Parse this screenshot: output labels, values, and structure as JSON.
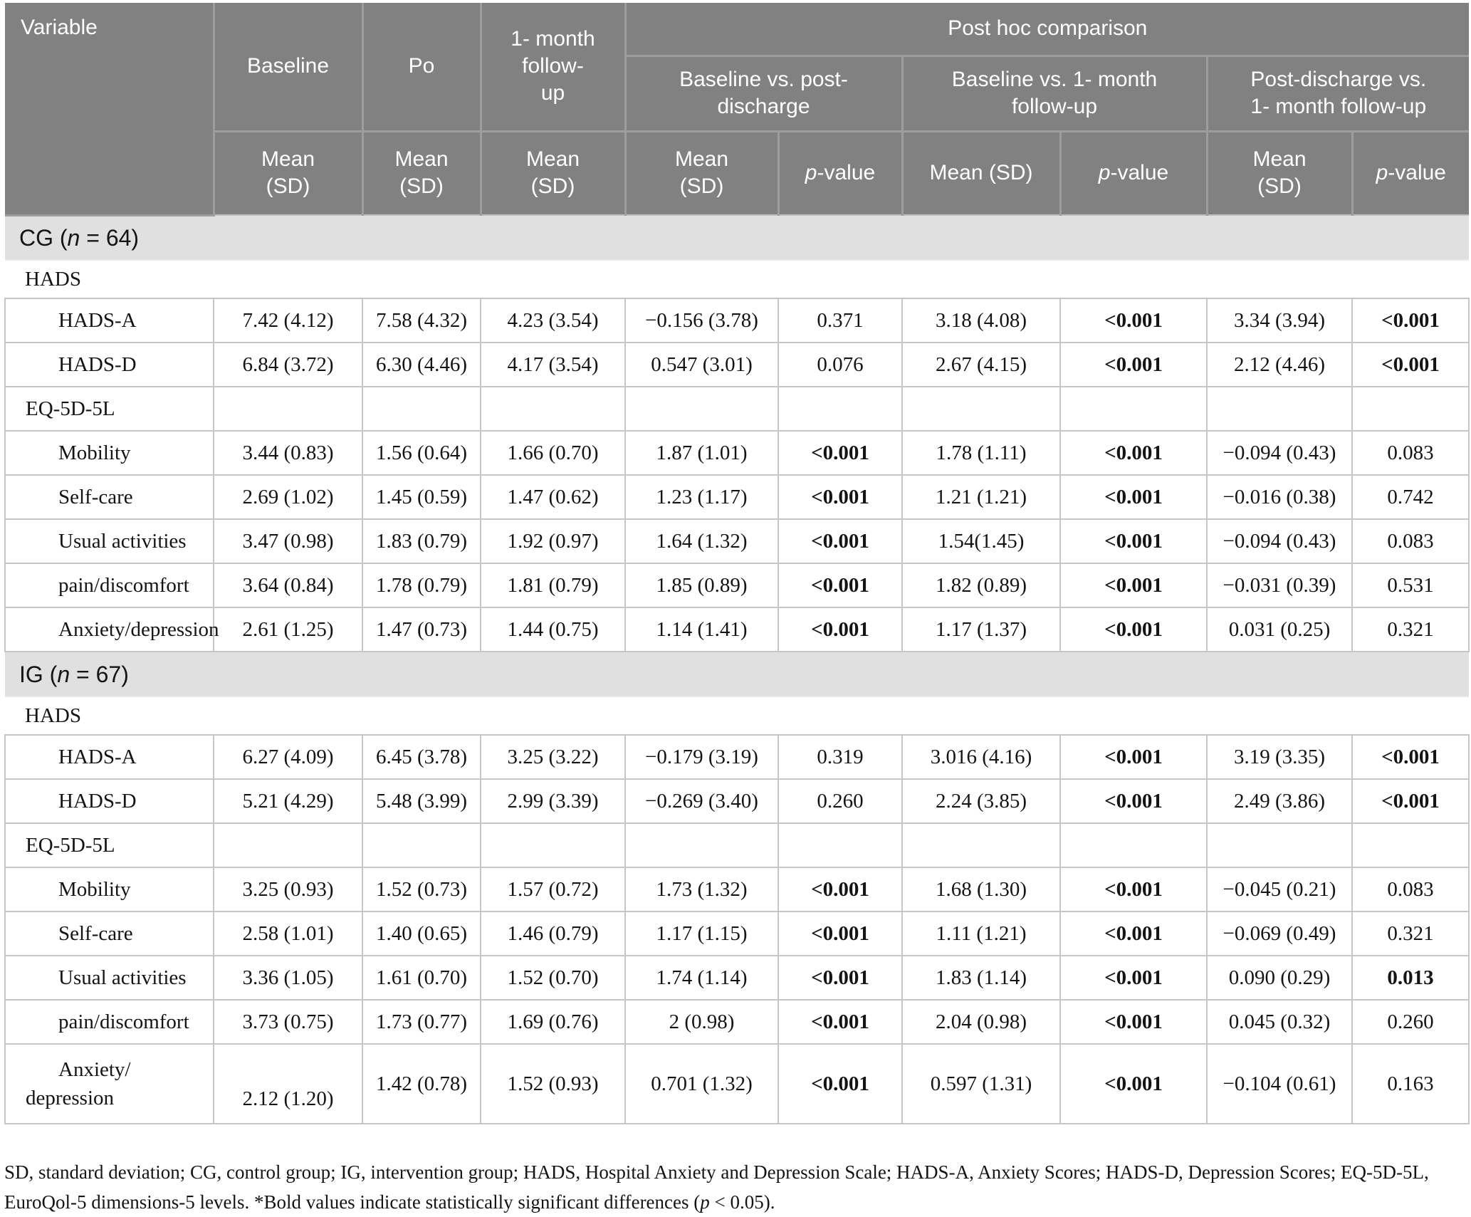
{
  "header": {
    "variable": "Variable",
    "baseline": "Baseline",
    "po": "Po",
    "month1": "1- month\nfollow-\nup",
    "post_hoc": "Post hoc comparison",
    "g1": "Baseline vs. post-\ndischarge",
    "g2": "Baseline vs. 1- month\nfollow-up",
    "g3": "Post-discharge vs.\n1- month follow-up",
    "mean_sd": "Mean\n(SD)",
    "mean_sd_inline": "Mean (SD)",
    "p_italic": "p",
    "p_rest": "-value"
  },
  "table": {
    "rows": [
      {
        "kind": "band",
        "pre": "CG (",
        "n": "n",
        "post": " = 64)"
      },
      {
        "kind": "span",
        "label": "HADS"
      },
      {
        "kind": "data",
        "label": "HADS-A",
        "indent": true,
        "cells": [
          "7.42 (4.12)",
          "7.58 (4.32)",
          "4.23 (3.54)",
          "−0.156 (3.78)",
          "0.371",
          "3.18 (4.08)",
          "<0.001",
          "3.34 (3.94)",
          "<0.001"
        ],
        "bold": [
          6,
          8
        ]
      },
      {
        "kind": "data",
        "label": "HADS-D",
        "indent": true,
        "cells": [
          "6.84 (3.72)",
          "6.30 (4.46)",
          "4.17 (3.54)",
          "0.547 (3.01)",
          "0.076",
          "2.67 (4.15)",
          "<0.001",
          "2.12 (4.46)",
          "<0.001"
        ],
        "bold": [
          6,
          8
        ]
      },
      {
        "kind": "data",
        "label": "EQ-5D-5L",
        "indent": false,
        "cells": [
          "",
          "",
          "",
          "",
          "",
          "",
          "",
          "",
          ""
        ],
        "bold": []
      },
      {
        "kind": "data",
        "label": "Mobility",
        "indent": true,
        "cells": [
          "3.44 (0.83)",
          "1.56 (0.64)",
          "1.66 (0.70)",
          "1.87 (1.01)",
          "<0.001",
          "1.78 (1.11)",
          "<0.001",
          "−0.094 (0.43)",
          "0.083"
        ],
        "bold": [
          4,
          6
        ]
      },
      {
        "kind": "data",
        "label": "Self-care",
        "indent": true,
        "cells": [
          "2.69 (1.02)",
          "1.45 (0.59)",
          "1.47 (0.62)",
          "1.23 (1.17)",
          "<0.001",
          "1.21 (1.21)",
          "<0.001",
          "−0.016 (0.38)",
          "0.742"
        ],
        "bold": [
          4,
          6
        ]
      },
      {
        "kind": "data",
        "label": "Usual activities",
        "indent": true,
        "cells": [
          "3.47 (0.98)",
          "1.83 (0.79)",
          "1.92 (0.97)",
          "1.64 (1.32)",
          "<0.001",
          "1.54(1.45)",
          "<0.001",
          "−0.094 (0.43)",
          "0.083"
        ],
        "bold": [
          4,
          6
        ]
      },
      {
        "kind": "data",
        "label": "pain/discomfort",
        "indent": true,
        "cells": [
          "3.64 (0.84)",
          "1.78 (0.79)",
          "1.81 (0.79)",
          "1.85 (0.89)",
          "<0.001",
          "1.82 (0.89)",
          "<0.001",
          "−0.031 (0.39)",
          "0.531"
        ],
        "bold": [
          4,
          6
        ]
      },
      {
        "kind": "data",
        "label": "Anxiety/depression",
        "indent": true,
        "cells": [
          "2.61 (1.25)",
          "1.47 (0.73)",
          "1.44 (0.75)",
          "1.14 (1.41)",
          "<0.001",
          "1.17 (1.37)",
          "<0.001",
          "0.031 (0.25)",
          "0.321"
        ],
        "bold": [
          4,
          6
        ]
      },
      {
        "kind": "band",
        "pre": "IG (",
        "n": "n",
        "post": " = 67)"
      },
      {
        "kind": "span",
        "label": "HADS"
      },
      {
        "kind": "data",
        "label": "HADS-A",
        "indent": true,
        "cells": [
          "6.27 (4.09)",
          "6.45 (3.78)",
          "3.25 (3.22)",
          "−0.179 (3.19)",
          "0.319",
          "3.016 (4.16)",
          "<0.001",
          "3.19 (3.35)",
          "<0.001"
        ],
        "bold": [
          6,
          8
        ]
      },
      {
        "kind": "data",
        "label": "HADS-D",
        "indent": true,
        "cells": [
          "5.21 (4.29)",
          "5.48 (3.99)",
          "2.99 (3.39)",
          "−0.269 (3.40)",
          "0.260",
          "2.24 (3.85)",
          "<0.001",
          "2.49 (3.86)",
          "<0.001"
        ],
        "bold": [
          6,
          8
        ]
      },
      {
        "kind": "data",
        "label": "EQ-5D-5L",
        "indent": false,
        "cells": [
          "",
          "",
          "",
          "",
          "",
          "",
          "",
          "",
          ""
        ],
        "bold": []
      },
      {
        "kind": "data",
        "label": "Mobility",
        "indent": true,
        "cells": [
          "3.25 (0.93)",
          "1.52 (0.73)",
          "1.57 (0.72)",
          "1.73 (1.32)",
          "<0.001",
          "1.68 (1.30)",
          "<0.001",
          "−0.045 (0.21)",
          "0.083"
        ],
        "bold": [
          4,
          6
        ]
      },
      {
        "kind": "data",
        "label": "Self-care",
        "indent": true,
        "cells": [
          "2.58 (1.01)",
          "1.40 (0.65)",
          "1.46 (0.79)",
          "1.17 (1.15)",
          "<0.001",
          "1.11 (1.21)",
          "<0.001",
          "−0.069 (0.49)",
          "0.321"
        ],
        "bold": [
          4,
          6
        ]
      },
      {
        "kind": "data",
        "label": "Usual activities",
        "indent": true,
        "cells": [
          "3.36 (1.05)",
          "1.61 (0.70)",
          "1.52 (0.70)",
          "1.74 (1.14)",
          "<0.001",
          "1.83 (1.14)",
          "<0.001",
          "0.090 (0.29)",
          "0.013"
        ],
        "bold": [
          4,
          6,
          8
        ]
      },
      {
        "kind": "data",
        "label": "pain/discomfort",
        "indent": true,
        "cells": [
          "3.73 (0.75)",
          "1.73 (0.77)",
          "1.69 (0.76)",
          "2 (0.98)",
          "<0.001",
          "2.04 (0.98)",
          "<0.001",
          "0.045 (0.32)",
          "0.260"
        ],
        "bold": [
          4,
          6
        ]
      },
      {
        "kind": "data",
        "label": "Anxiety/\ndepression",
        "indent": true,
        "tall": true,
        "cells": [
          "2.12 (1.20)",
          "1.42 (0.78)",
          "1.52 (0.93)",
          "0.701 (1.32)",
          "<0.001",
          "0.597 (1.31)",
          "<0.001",
          "−0.104 (0.61)",
          "0.163"
        ],
        "bold": [
          4,
          6
        ],
        "bottom_cells": [
          0
        ]
      }
    ]
  },
  "footnote": {
    "part1": "SD, standard deviation; CG, control group; IG, intervention group; HADS, Hospital Anxiety and Depression Scale; HADS-A, Anxiety Scores; HADS-D, Depression Scores; EQ-5D-5L,\nEuroQol-5 dimensions-5 levels. *Bold values indicate statistically significant differences (",
    "p": "p",
    "part2": " < 0.05)."
  },
  "colors": {
    "header_bg": "#818181",
    "header_border": "#9d9d9d",
    "header_text": "#ffffff",
    "band_bg": "#e0e0e0",
    "body_border": "#c6c6c6",
    "body_text": "#141414"
  }
}
